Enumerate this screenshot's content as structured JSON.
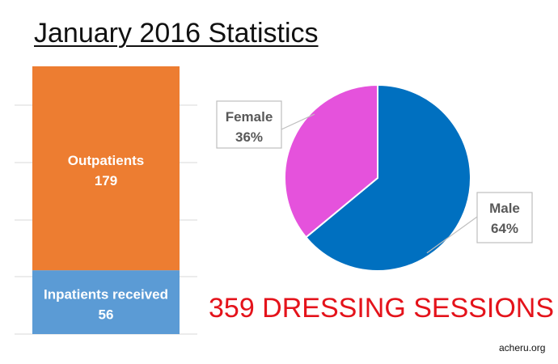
{
  "title": "January 2016 Statistics",
  "headline": "359 DRESSING SESSIONS",
  "source": "acheru.org",
  "chart_data": [
    {
      "type": "bar",
      "stacked": true,
      "orientation": "vertical",
      "series": [
        {
          "name": "Inpatients received",
          "values": [
            56
          ],
          "color": "#5b9bd5"
        },
        {
          "name": "Outpatients",
          "values": [
            179
          ],
          "color": "#ed7d31"
        }
      ],
      "total": 235,
      "data_labels": true,
      "grid": true
    },
    {
      "type": "pie",
      "slices": [
        {
          "label": "Male",
          "value": 64,
          "display": "64%",
          "color": "#0070c0"
        },
        {
          "label": "Female",
          "value": 36,
          "display": "36%",
          "color": "#e552dc"
        }
      ],
      "start_angle": "top, clockwise",
      "label_style": "callout"
    }
  ],
  "colors": {
    "headline": "#e4131b",
    "grid": "#d9d9d9"
  }
}
